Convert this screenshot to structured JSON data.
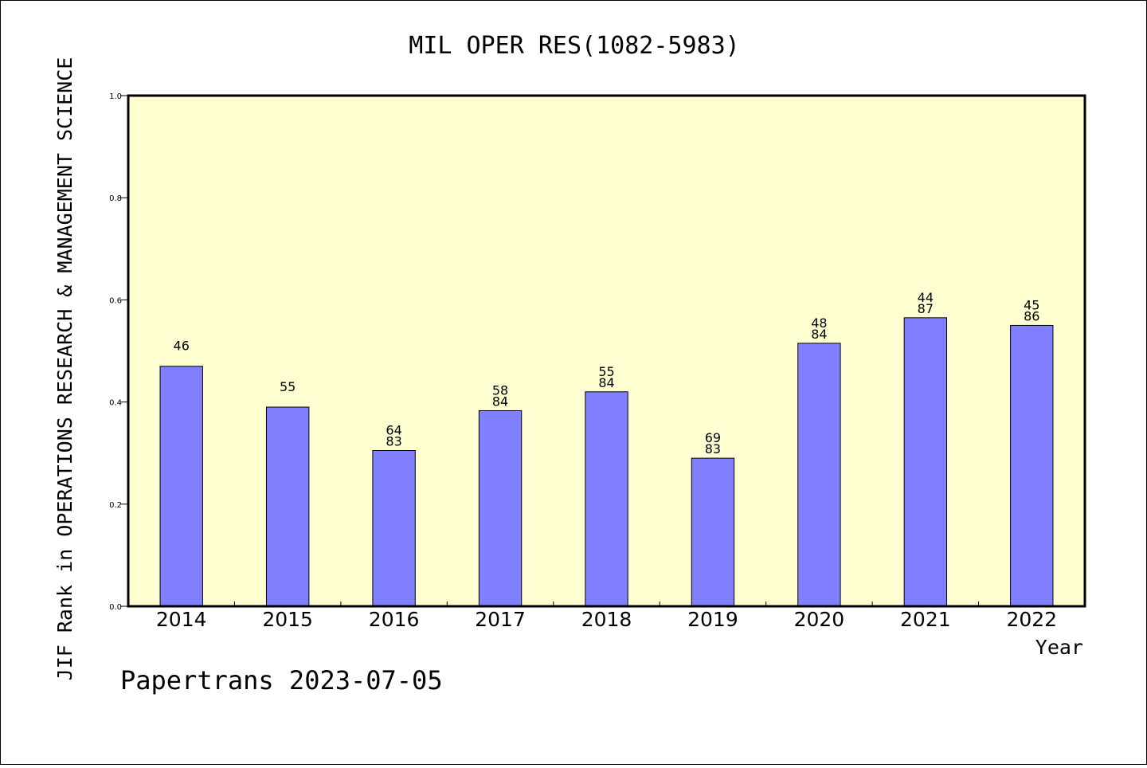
{
  "chart_data": {
    "type": "bar",
    "title": "MIL OPER RES(1082-5983)",
    "ylabel": "JIF Rank in OPERATIONS RESEARCH & MANAGEMENT SCIENCE",
    "xlabel": "Year",
    "ylim": [
      0,
      1.0
    ],
    "yticks": [
      "0.0",
      "0.2",
      "0.4",
      "0.6",
      "0.8",
      "1.0"
    ],
    "categories": [
      "2014",
      "2015",
      "2016",
      "2017",
      "2018",
      "2019",
      "2020",
      "2021",
      "2022"
    ],
    "values": [
      0.47,
      0.39,
      0.305,
      0.383,
      0.42,
      0.29,
      0.515,
      0.565,
      0.55
    ],
    "bar_labels": [
      [
        "46"
      ],
      [
        "55"
      ],
      [
        "64",
        "83"
      ],
      [
        "58",
        "84"
      ],
      [
        "55",
        "84"
      ],
      [
        "69",
        "83"
      ],
      [
        "48",
        "84"
      ],
      [
        "44",
        "87"
      ],
      [
        "45",
        "86"
      ]
    ],
    "bar_color": "#8080ff",
    "plot_background": "#ffffd2",
    "grid": false,
    "legend": "none"
  },
  "footer": "Papertrans 2023-07-05"
}
